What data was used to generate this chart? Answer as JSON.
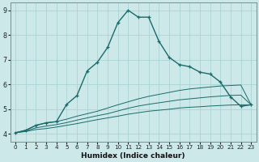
{
  "xlabel": "Humidex (Indice chaleur)",
  "background_color": "#cce8e8",
  "grid_color": "#aad4d4",
  "line_color": "#1a6b6b",
  "xlim": [
    -0.5,
    23.5
  ],
  "ylim": [
    3.7,
    9.3
  ],
  "xticks": [
    0,
    1,
    2,
    3,
    4,
    5,
    6,
    7,
    8,
    9,
    10,
    11,
    12,
    13,
    14,
    15,
    16,
    17,
    18,
    19,
    20,
    21,
    22,
    23
  ],
  "yticks": [
    4,
    5,
    6,
    7,
    8,
    9
  ],
  "line_main": {
    "x": [
      0,
      1,
      2,
      3,
      4,
      5,
      6,
      7,
      8,
      9,
      10,
      11,
      12,
      13,
      14,
      15,
      16,
      17,
      18,
      19,
      20,
      21,
      22,
      23
    ],
    "y": [
      4.05,
      4.15,
      4.35,
      4.45,
      4.5,
      5.2,
      5.55,
      6.55,
      6.9,
      7.5,
      8.5,
      9.0,
      8.72,
      8.72,
      7.75,
      7.1,
      6.8,
      6.72,
      6.5,
      6.42,
      6.1,
      5.5,
      5.12,
      5.18
    ]
  },
  "line_a": {
    "x": [
      0,
      1,
      2,
      3,
      4,
      5,
      6,
      7,
      8,
      9,
      10,
      11,
      12,
      13,
      14,
      15,
      16,
      17,
      18,
      19,
      20,
      21,
      22,
      23
    ],
    "y": [
      4.05,
      4.15,
      4.35,
      4.45,
      4.5,
      4.6,
      4.72,
      4.82,
      4.92,
      5.05,
      5.18,
      5.3,
      5.42,
      5.52,
      5.6,
      5.68,
      5.76,
      5.82,
      5.86,
      5.9,
      5.94,
      5.96,
      5.98,
      5.18
    ]
  },
  "line_b": {
    "x": [
      0,
      1,
      2,
      3,
      4,
      5,
      6,
      7,
      8,
      9,
      10,
      11,
      12,
      13,
      14,
      15,
      16,
      17,
      18,
      19,
      20,
      21,
      22,
      23
    ],
    "y": [
      4.05,
      4.1,
      4.18,
      4.22,
      4.28,
      4.35,
      4.42,
      4.5,
      4.58,
      4.65,
      4.72,
      4.8,
      4.86,
      4.92,
      4.96,
      5.0,
      5.05,
      5.08,
      5.1,
      5.13,
      5.15,
      5.17,
      5.18,
      5.18
    ]
  },
  "line_c": {
    "x": [
      0,
      1,
      2,
      3,
      4,
      5,
      6,
      7,
      8,
      9,
      10,
      11,
      12,
      13,
      14,
      15,
      16,
      17,
      18,
      19,
      20,
      21,
      22,
      23
    ],
    "y": [
      4.05,
      4.12,
      4.25,
      4.32,
      4.38,
      4.46,
      4.56,
      4.65,
      4.74,
      4.82,
      4.93,
      5.04,
      5.13,
      5.2,
      5.26,
      5.32,
      5.38,
      5.42,
      5.46,
      5.5,
      5.53,
      5.56,
      5.57,
      5.18
    ]
  }
}
